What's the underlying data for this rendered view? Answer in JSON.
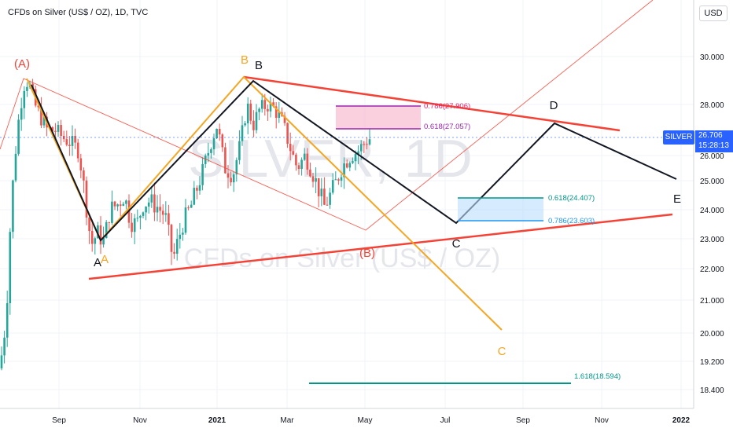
{
  "header": {
    "title": "CFDs on Silver (US$ / OZ), 1D, TVC",
    "currency": "USD"
  },
  "watermark": {
    "big": "SILVER, 1D",
    "small": "CFDs on Silver (US$ / OZ)"
  },
  "last_price": {
    "symbol": "SILVER",
    "price": "26.706",
    "countdown": "15:28:13"
  },
  "chart_data": {
    "type": "candlestick",
    "ylim": [
      18.1,
      31.1
    ],
    "y_ticks": [
      "30.000",
      "28.000",
      "26.000",
      "25.000",
      "24.000",
      "23.000",
      "22.000",
      "21.000",
      "20.000",
      "19.200",
      "18.400"
    ],
    "x_ticks": [
      "Sep",
      "Nov",
      "2021",
      "Mar",
      "May",
      "Jul",
      "Sep",
      "Nov",
      "2022"
    ],
    "grid": true,
    "colors": {
      "up": "#26a69a",
      "down": "#ef5350",
      "line": "#131722",
      "orange": "#f5a623",
      "red": "#f44336",
      "teal": "#26a69a",
      "magenta": "#9c27b0",
      "blue": "#2196f3",
      "grid": "#f0f3fa"
    },
    "fib_levels": [
      {
        "label": "0.786(27.906)",
        "price": 27.906,
        "color": "#e91e63"
      },
      {
        "label": "0.618(27.057)",
        "price": 27.057,
        "color": "#9c27b0"
      },
      {
        "label": "0.618(24.407)",
        "price": 24.407,
        "color": "#009688"
      },
      {
        "label": "0.786(23.603)",
        "price": 23.603,
        "color": "#2196f3"
      },
      {
        "label": "1.618(18.594)",
        "price": 18.594,
        "color": "#009688"
      }
    ],
    "wave_labels": [
      {
        "text": "(A)",
        "color": "#f44336"
      },
      {
        "text": "B",
        "color": "#f5a623"
      },
      {
        "text": "B",
        "color": "#131722"
      },
      {
        "text": "A",
        "color": "#131722"
      },
      {
        "text": "A",
        "color": "#f5a623"
      },
      {
        "text": "(B)",
        "color": "#f44336"
      },
      {
        "text": "C",
        "color": "#131722"
      },
      {
        "text": "D",
        "color": "#131722"
      },
      {
        "text": "E",
        "color": "#131722"
      },
      {
        "text": "C",
        "color": "#f5a623"
      }
    ]
  }
}
